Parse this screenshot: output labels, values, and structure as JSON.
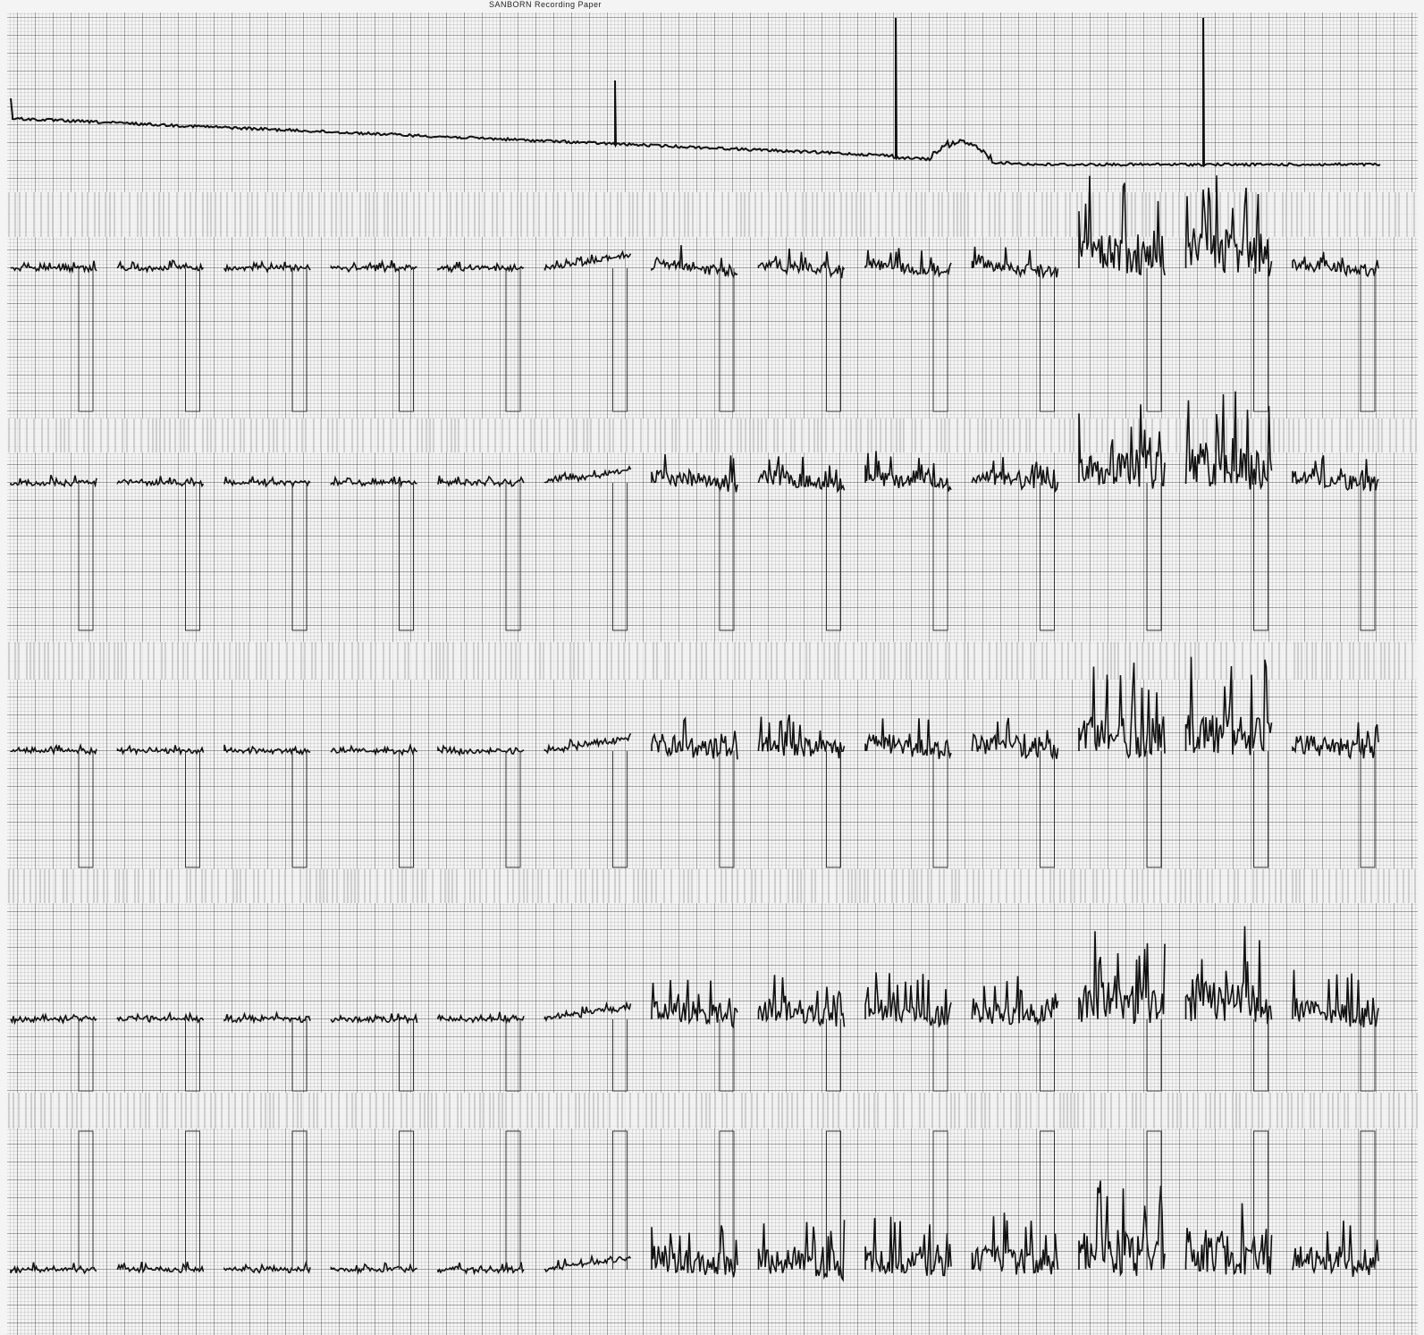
{
  "header": {
    "title": "SANBORN Recording Paper"
  }
}
